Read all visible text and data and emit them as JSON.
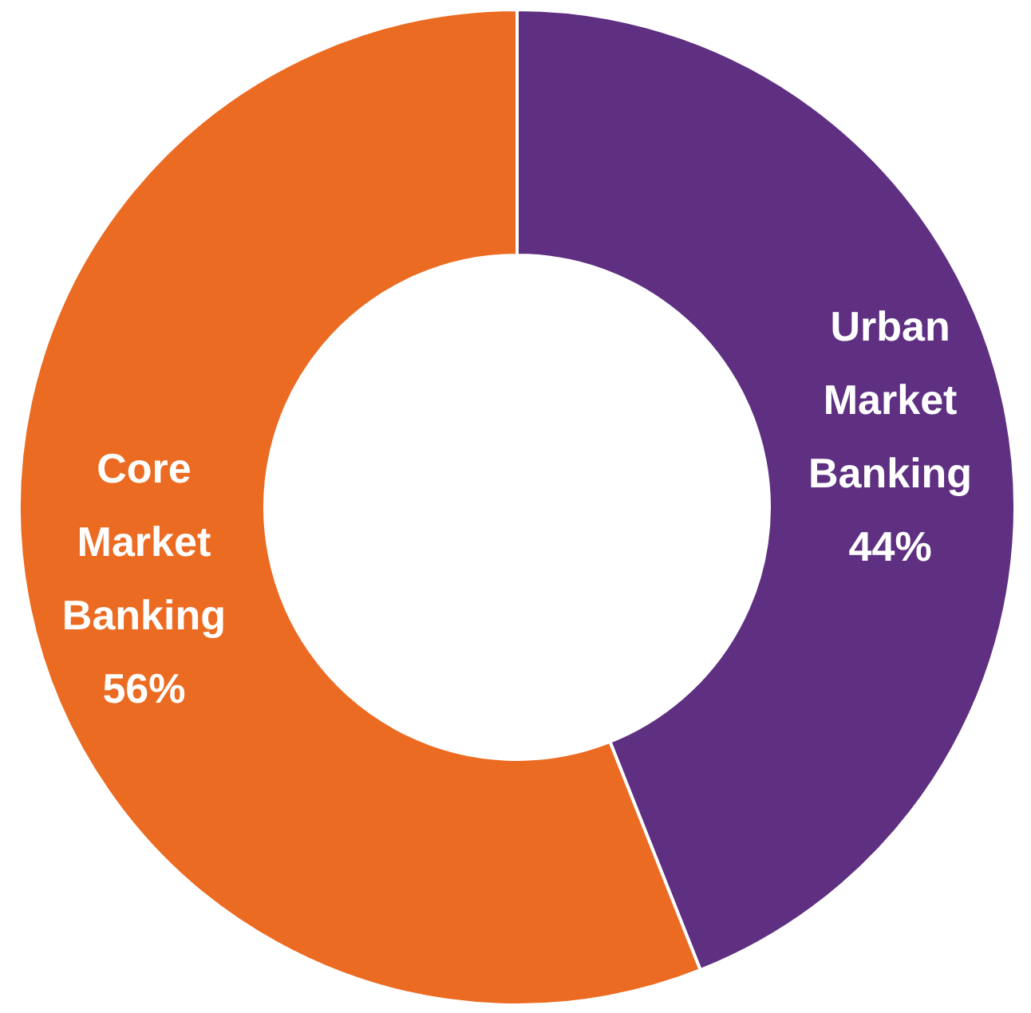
{
  "chart_data": {
    "type": "donut",
    "categories": [
      "Urban Market Banking",
      "Core Market Banking"
    ],
    "values": [
      44,
      56
    ],
    "colors": [
      "#5f2f82",
      "#ec6b22"
    ],
    "value_labels": [
      "44%",
      "56%"
    ],
    "legend": false
  }
}
